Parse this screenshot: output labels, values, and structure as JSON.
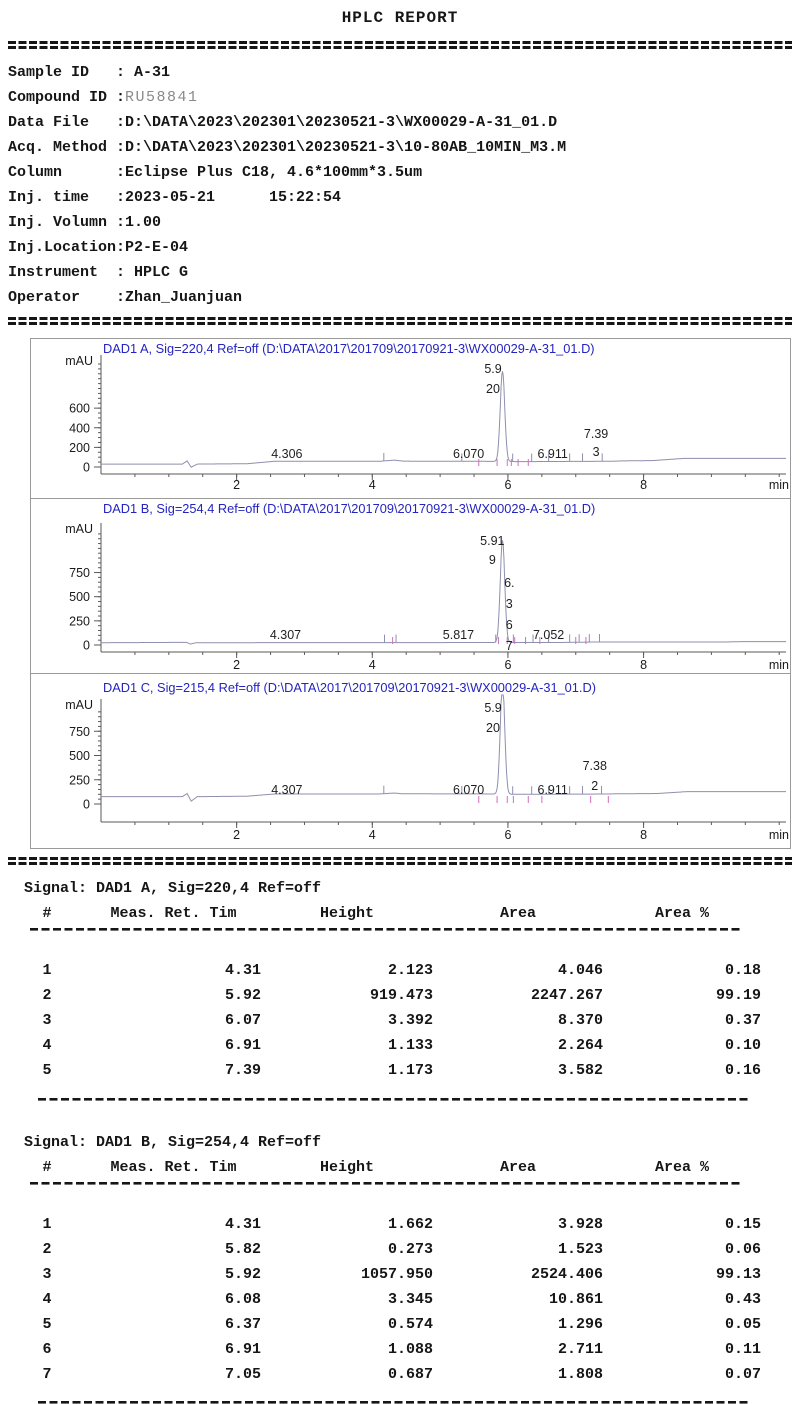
{
  "report": {
    "title": "HPLC REPORT"
  },
  "info": {
    "rows": [
      {
        "label": "Sample ID",
        "value": " A-31"
      },
      {
        "label": "Compound ID",
        "value": "RU58841",
        "muted": true
      },
      {
        "label": "Data File",
        "value": "D:\\DATA\\2023\\202301\\20230521-3\\WX00029-A-31_01.D"
      },
      {
        "label": "Acq. Method",
        "value": "D:\\DATA\\2023\\202301\\20230521-3\\10-80AB_10MIN_M3.M"
      },
      {
        "label": "Column",
        "value": "Eclipse Plus C18, 4.6*100mm*3.5um"
      },
      {
        "label": "Inj. time",
        "value": "2023-05-21      15:22:54"
      },
      {
        "label": "Inj. Volumn",
        "value": "1.00"
      },
      {
        "label": "Inj.Location",
        "value": "P2-E-04"
      },
      {
        "label": "Instrument",
        "value": " HPLC G"
      },
      {
        "label": "Operator",
        "value": "Zhan_Juanjuan"
      }
    ]
  },
  "colors": {
    "chart_title_blue": "#2424c0",
    "trace_gray_violet": "#8f8fae",
    "integration_mark_magenta": "#cf6ec0"
  },
  "chart_data": [
    {
      "type": "line",
      "title": "DAD1 A, Sig=220,4 Ref=off (D:\\DATA\\2017\\201709\\20170921-3\\WX00029-A-31_01.D)",
      "ylabel": "mAU",
      "x_unit": "min",
      "x_range": [
        0,
        10.1
      ],
      "y_range": [
        0,
        1060
      ],
      "x_ticks": [
        2,
        4,
        6,
        8
      ],
      "y_ticks": [
        0,
        200,
        400,
        600
      ],
      "peaks": [
        {
          "rt": 4.31,
          "height_mAU": 2.123
        },
        {
          "rt": 5.92,
          "height_mAU": 919.473
        },
        {
          "rt": 6.07,
          "height_mAU": 3.392
        },
        {
          "rt": 6.91,
          "height_mAU": 1.133
        },
        {
          "rt": 7.39,
          "height_mAU": 1.173
        }
      ],
      "baseline_mAU": [
        [
          0,
          30
        ],
        [
          1.2,
          30
        ],
        [
          1.27,
          62
        ],
        [
          1.33,
          -2
        ],
        [
          1.42,
          30
        ],
        [
          2.15,
          33
        ],
        [
          2.55,
          58
        ],
        [
          4.1,
          58
        ],
        [
          4.25,
          66
        ],
        [
          4.33,
          70
        ],
        [
          4.45,
          60
        ],
        [
          5.0,
          58
        ],
        [
          5.6,
          58
        ],
        [
          6.2,
          55
        ],
        [
          7.45,
          58
        ],
        [
          7.7,
          62
        ],
        [
          8.15,
          66
        ],
        [
          8.6,
          88
        ],
        [
          10.1,
          88
        ]
      ],
      "peak_labels": [
        {
          "x": 2.74,
          "y": 119,
          "lines": [
            "4.306"
          ]
        },
        {
          "x": 5.42,
          "y": 119,
          "lines": [
            "6.070"
          ]
        },
        {
          "x": 5.78,
          "y": 34,
          "dy": 20,
          "lines": [
            "5.9",
            "20"
          ]
        },
        {
          "x": 6.66,
          "y": 119,
          "lines": [
            "6.911"
          ]
        },
        {
          "x": 7.3,
          "y": 99,
          "dy": 18,
          "lines": [
            "7.39",
            "3"
          ]
        }
      ],
      "spikes": [
        4.17,
        5.32,
        6.07,
        6.35,
        6.6,
        6.91,
        7.1,
        7.39
      ],
      "marks": [
        5.57,
        5.84,
        5.99,
        6.05,
        6.15,
        6.3
      ]
    },
    {
      "type": "line",
      "title": "DAD1 B, Sig=254,4 Ref=off (D:\\DATA\\2017\\201709\\20170921-3\\WX00029-A-31_01.D)",
      "ylabel": "mAU",
      "x_unit": "min",
      "x_range": [
        0,
        10.1
      ],
      "y_range": [
        0,
        1180
      ],
      "x_ticks": [
        2,
        4,
        6,
        8
      ],
      "y_ticks": [
        0,
        250,
        500,
        750
      ],
      "peaks": [
        {
          "rt": 4.31,
          "height_mAU": 1.662
        },
        {
          "rt": 5.82,
          "height_mAU": 0.273
        },
        {
          "rt": 5.92,
          "height_mAU": 1057.95
        },
        {
          "rt": 6.08,
          "height_mAU": 3.345
        },
        {
          "rt": 6.37,
          "height_mAU": 0.574
        },
        {
          "rt": 6.91,
          "height_mAU": 1.088
        },
        {
          "rt": 7.05,
          "height_mAU": 0.687
        }
      ],
      "baseline_mAU": [
        [
          0,
          24
        ],
        [
          1.26,
          27
        ],
        [
          1.32,
          10
        ],
        [
          1.4,
          24
        ],
        [
          4.1,
          25
        ],
        [
          6.8,
          26
        ],
        [
          7.25,
          31
        ],
        [
          9.2,
          31
        ],
        [
          9.45,
          35
        ],
        [
          10.1,
          35
        ]
      ],
      "peak_labels": [
        {
          "x": 2.72,
          "y": 140,
          "lines": [
            "4.307"
          ]
        },
        {
          "x": 5.27,
          "y": 140,
          "lines": [
            "5.817"
          ]
        },
        {
          "x": 5.77,
          "y": 46,
          "dy": 19,
          "lines": [
            "5.91",
            "9"
          ]
        },
        {
          "x": 6.02,
          "y": 88,
          "dy": 21,
          "lines": [
            "6.",
            "3",
            "6",
            "7"
          ]
        },
        {
          "x": 6.6,
          "y": 140,
          "lines": [
            "7.052"
          ]
        }
      ],
      "spikes": [
        4.18,
        4.35,
        5.82,
        6.08,
        6.37,
        6.6,
        6.91,
        7.05,
        7.2,
        7.35
      ],
      "marks": [
        4.3,
        5.86,
        5.99,
        6.1,
        6.26,
        6.47,
        7.0,
        7.15
      ]
    },
    {
      "type": "line",
      "title": "DAD1 C, Sig=215,4 Ref=off (D:\\DATA\\2017\\201709\\20170921-3\\WX00029-A-31_01.D)",
      "ylabel": "mAU",
      "x_unit": "min",
      "x_range": [
        0,
        10.1
      ],
      "y_range": [
        0,
        1000
      ],
      "x_ticks": [
        2,
        4,
        6,
        8
      ],
      "y_ticks": [
        0,
        250,
        500,
        750
      ],
      "peaks": [
        {
          "rt": 4.307,
          "height_mAU": 2
        },
        {
          "rt": 5.92,
          "height_mAU": 1150
        },
        {
          "rt": 6.07,
          "height_mAU": 3
        },
        {
          "rt": 6.911,
          "height_mAU": 1
        },
        {
          "rt": 7.382,
          "height_mAU": 1
        }
      ],
      "baseline_mAU": [
        [
          0,
          76
        ],
        [
          1.2,
          76
        ],
        [
          1.27,
          108
        ],
        [
          1.33,
          30
        ],
        [
          1.42,
          76
        ],
        [
          2.15,
          80
        ],
        [
          2.55,
          103
        ],
        [
          4.1,
          103
        ],
        [
          4.25,
          110
        ],
        [
          4.33,
          113
        ],
        [
          4.45,
          105
        ],
        [
          5.6,
          104
        ],
        [
          6.2,
          100
        ],
        [
          7.45,
          103
        ],
        [
          7.7,
          106
        ],
        [
          8.2,
          108
        ],
        [
          8.65,
          128
        ],
        [
          10.1,
          128
        ]
      ],
      "peak_labels": [
        {
          "x": 2.74,
          "y": 120,
          "lines": [
            "4.307"
          ]
        },
        {
          "x": 5.42,
          "y": 120,
          "lines": [
            "6.070"
          ]
        },
        {
          "x": 5.78,
          "y": 38,
          "dy": 20,
          "lines": [
            "5.9",
            "20"
          ]
        },
        {
          "x": 6.66,
          "y": 120,
          "lines": [
            "6.911"
          ]
        },
        {
          "x": 7.28,
          "y": 96,
          "dy": 20,
          "lines": [
            "7.38",
            "2"
          ]
        }
      ],
      "spikes": [
        4.17,
        5.32,
        6.07,
        6.35,
        6.6,
        6.91,
        7.1,
        7.38
      ],
      "marks": [
        5.57,
        5.84,
        5.99,
        6.08,
        6.3,
        6.5,
        7.22,
        7.48
      ]
    }
  ],
  "tables": [
    {
      "signal": "Signal: DAD1 A, Sig=220,4 Ref=off",
      "columns": [
        "#",
        "Meas. Ret. Tim",
        "Height",
        "Area",
        "Area %"
      ],
      "rows": [
        [
          "1",
          "4.31",
          "2.123",
          "4.046",
          "0.18"
        ],
        [
          "2",
          "5.92",
          "919.473",
          "2247.267",
          "99.19"
        ],
        [
          "3",
          "6.07",
          "3.392",
          "8.370",
          "0.37"
        ],
        [
          "4",
          "6.91",
          "1.133",
          "2.264",
          "0.10"
        ],
        [
          "5",
          "7.39",
          "1.173",
          "3.582",
          "0.16"
        ]
      ]
    },
    {
      "signal": "Signal: DAD1 B, Sig=254,4 Ref=off",
      "columns": [
        "#",
        "Meas. Ret. Tim",
        "Height",
        "Area",
        "Area %"
      ],
      "rows": [
        [
          "1",
          "4.31",
          "1.662",
          "3.928",
          "0.15"
        ],
        [
          "2",
          "5.82",
          "0.273",
          "1.523",
          "0.06"
        ],
        [
          "3",
          "5.92",
          "1057.950",
          "2524.406",
          "99.13"
        ],
        [
          "4",
          "6.08",
          "3.345",
          "10.861",
          "0.43"
        ],
        [
          "5",
          "6.37",
          "0.574",
          "1.296",
          "0.05"
        ],
        [
          "6",
          "6.91",
          "1.088",
          "2.711",
          "0.11"
        ],
        [
          "7",
          "7.05",
          "0.687",
          "1.808",
          "0.07"
        ]
      ]
    }
  ]
}
